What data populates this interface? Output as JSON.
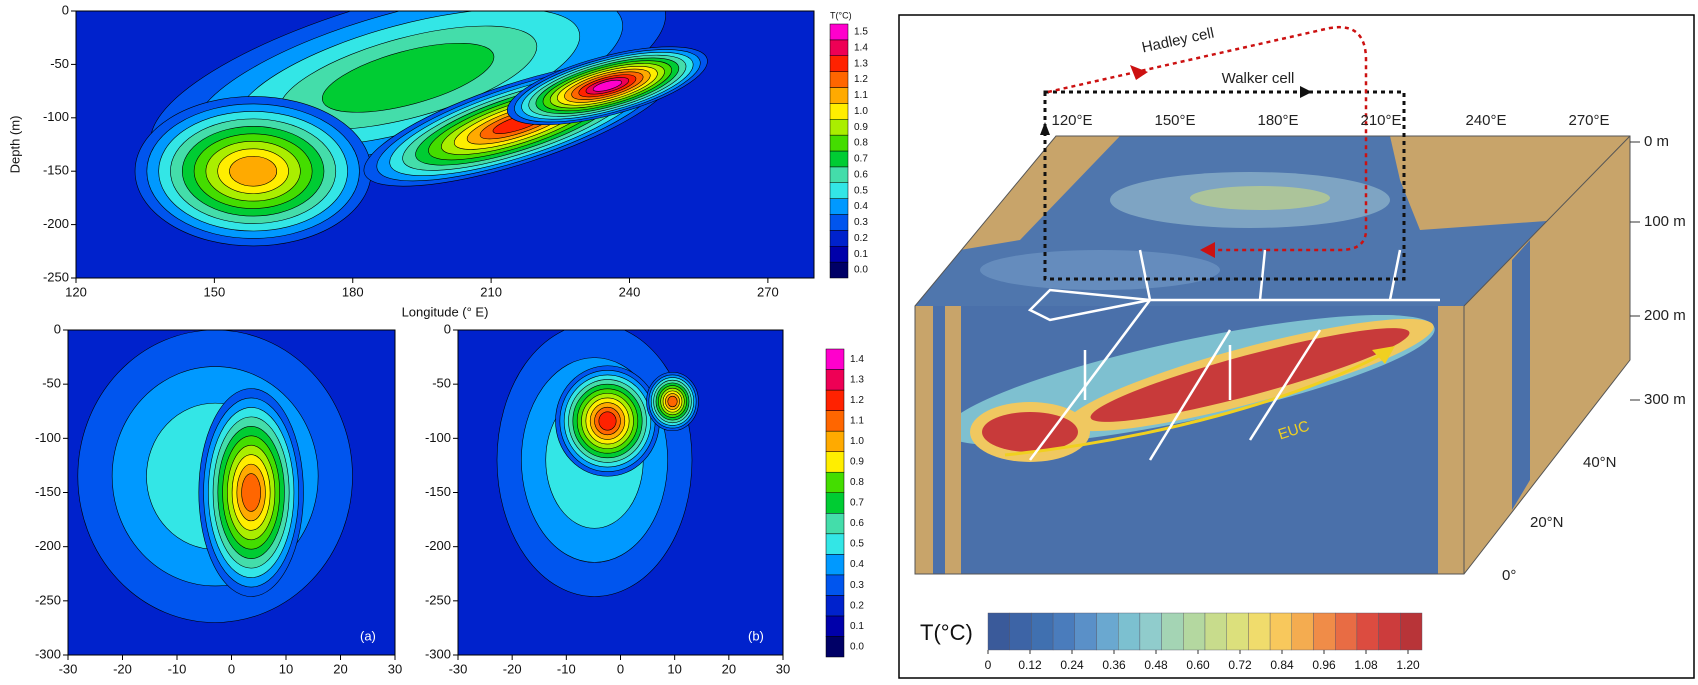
{
  "chart_data": [
    {
      "type": "contour",
      "ylabel": "Depth (m)",
      "xlabel": "Longitude (°   E)",
      "xlim": [
        120,
        280
      ],
      "xticks": [
        120,
        150,
        180,
        210,
        240,
        270
      ],
      "ylim": [
        -250,
        0
      ],
      "yticks": [
        0,
        -50,
        -100,
        -150,
        -200,
        -250
      ],
      "colorbar": {
        "title": "T(°C)",
        "colors": [
          "#000066",
          "#0000aa",
          "#0022cc",
          "#0055ee",
          "#0099ff",
          "#33e6e6",
          "#44ddaa",
          "#00cc33",
          "#44dd00",
          "#aaee00",
          "#ffee00",
          "#ffaa00",
          "#ff6600",
          "#ff2200",
          "#ee0055",
          "#ff00cc"
        ],
        "ticks": [
          {
            "value": 0,
            "label": "0.0"
          },
          0.1,
          0.2,
          0.3,
          0.4,
          0.5,
          0.6,
          0.7,
          0.8,
          0.9,
          {
            "value": 1,
            "label": "1.0"
          },
          1.1,
          1.2,
          1.3,
          1.4,
          1.5
        ]
      }
    },
    {
      "type": "contour",
      "panel_label": "(a)",
      "xlim": [
        -30,
        30
      ],
      "xticks": [
        -30,
        -20,
        -10,
        0,
        10,
        20,
        30
      ],
      "ylim": [
        -300,
        0
      ],
      "yticks": [
        0,
        -50,
        -100,
        -150,
        -200,
        -250,
        -300
      ]
    },
    {
      "type": "contour",
      "panel_label": "(b)",
      "xlim": [
        -30,
        30
      ],
      "xticks": [
        -30,
        -20,
        -10,
        0,
        10,
        20,
        30
      ],
      "ylim": [
        -300,
        0
      ],
      "yticks": [
        0,
        -50,
        -100,
        -150,
        -200,
        -250,
        -300
      ],
      "colorbar": {
        "colors": [
          "#000066",
          "#0000aa",
          "#0022cc",
          "#0055ee",
          "#0099ff",
          "#33e6e6",
          "#44ddaa",
          "#00cc33",
          "#44dd00",
          "#ffee00",
          "#ffaa00",
          "#ff6600",
          "#ff2200",
          "#ee0055",
          "#ff00cc"
        ],
        "ticks": [
          {
            "value": 0,
            "label": "0.0"
          },
          0.1,
          0.2,
          0.3,
          0.4,
          0.5,
          0.6,
          0.7,
          0.8,
          0.9,
          {
            "value": 1,
            "label": "1.0"
          },
          1.1,
          1.2,
          1.3,
          1.4
        ]
      }
    }
  ],
  "diagram": {
    "hadley": "Hadley cell",
    "walker": "Walker cell",
    "longitudes": [
      "120°E",
      "150°E",
      "180°E",
      "210°E",
      "240°E",
      "270°E"
    ],
    "depths": [
      "0 m",
      "100 m",
      "200 m",
      "300 m"
    ],
    "latitudes": [
      "40°N",
      "20°N",
      "0°"
    ],
    "current": "EUC",
    "colorbar": {
      "title": "T(°C)",
      "colors": [
        "#3a5a9a",
        "#3d64a6",
        "#4070b0",
        "#4a7cbc",
        "#5a90c8",
        "#6aa8d0",
        "#7cc0d0",
        "#90cccc",
        "#a4d4b4",
        "#b4d8a0",
        "#c8dc8c",
        "#dce07c",
        "#f0dc6c",
        "#f8c85c",
        "#f4ac50",
        "#f08c48",
        "#e86c44",
        "#dc4c40",
        "#cc3c3c",
        "#b83438"
      ],
      "ticks": [
        0,
        0.12,
        0.24,
        0.36,
        0.48,
        {
          "value": 0.6,
          "label": "0.60"
        },
        0.72,
        0.84,
        0.96,
        1.08,
        {
          "value": 1.2,
          "label": "1.20"
        }
      ]
    }
  }
}
